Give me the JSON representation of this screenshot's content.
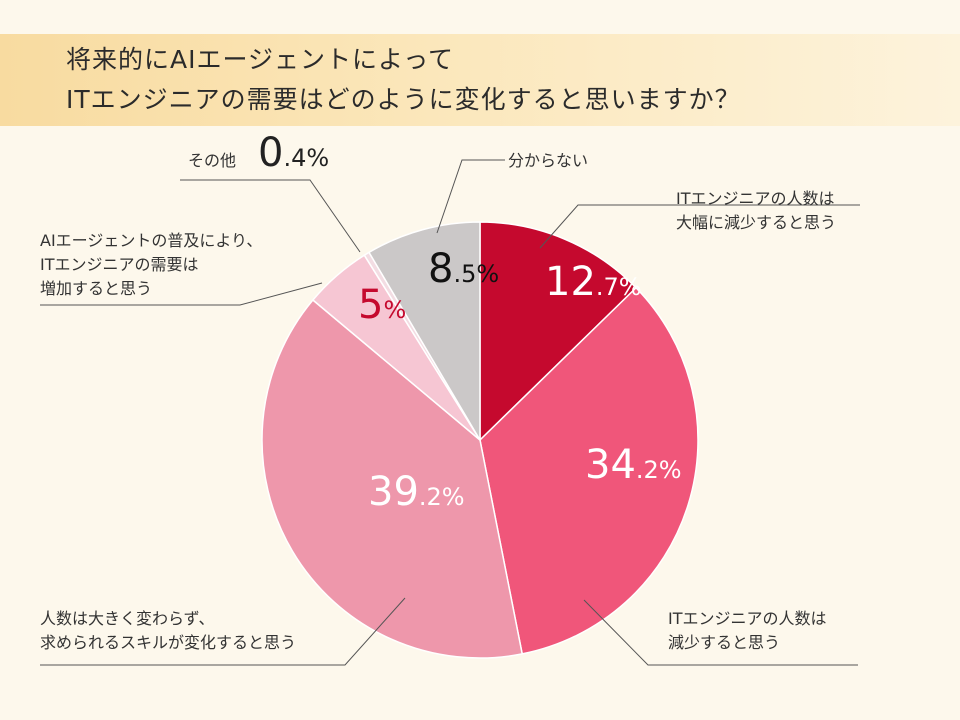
{
  "title": {
    "line1": "将来的にAIエージェントによって",
    "line2": "ITエンジニアの需要はどのように変化すると思いますか？"
  },
  "chart_data": {
    "type": "pie",
    "slices": [
      {
        "label_lines": [
          "ITエンジニアの人数は",
          "大幅に減少すると思う"
        ],
        "value": 12.7,
        "int": "12",
        "dec": ".7%",
        "color": "#c5092e",
        "text_color": "#ffffff"
      },
      {
        "label_lines": [
          "ITエンジニアの人数は",
          "減少すると思う"
        ],
        "value": 34.2,
        "int": "34",
        "dec": ".2%",
        "color": "#f0567a",
        "text_color": "#ffffff"
      },
      {
        "label_lines": [
          "人数は大きく変わらず、",
          "求められるスキルが変化すると思う"
        ],
        "value": 39.2,
        "int": "39",
        "dec": ".2%",
        "color": "#ee97ab",
        "text_color": "#ffffff"
      },
      {
        "label_lines": [
          "AIエージェントの普及により、",
          "ITエンジニアの需要は",
          "増加すると思う"
        ],
        "value": 5,
        "int": "5",
        "dec": "%",
        "color": "#f6c6d3",
        "text_color": "#c5092e"
      },
      {
        "label_lines": [
          "その他"
        ],
        "value": 0.4,
        "int": "0",
        "dec": ".4%",
        "color": "#f3dde3",
        "text_color": "#222222"
      },
      {
        "label_lines": [
          "分からない"
        ],
        "value": 8.5,
        "int": "8",
        "dec": ".5%",
        "color": "#cbc8c8",
        "text_color": "#111111"
      }
    ]
  }
}
